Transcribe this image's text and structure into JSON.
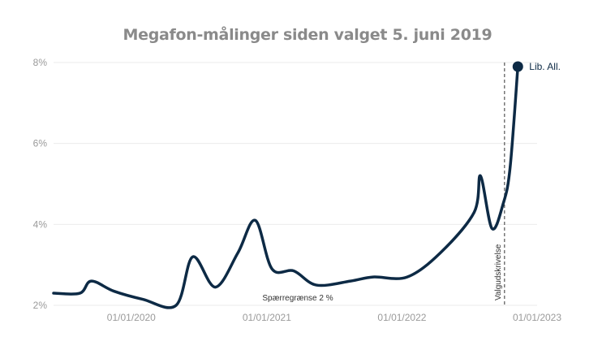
{
  "chart_data": {
    "type": "line",
    "title": "Megafon-målinger siden valget 5. juni 2019",
    "xlabel": "",
    "ylabel": "",
    "x_range": [
      "2019-06-05",
      "2023-01-01"
    ],
    "ylim": [
      2,
      8
    ],
    "y_ticks": [
      {
        "value": 2,
        "label": "2%"
      },
      {
        "value": 4,
        "label": "4%"
      },
      {
        "value": 6,
        "label": "6%"
      },
      {
        "value": 8,
        "label": "8%"
      }
    ],
    "x_ticks": [
      {
        "date": "2020-01-01",
        "label": "01/01/2020"
      },
      {
        "date": "2021-01-01",
        "label": "01/01/2021"
      },
      {
        "date": "2022-01-01",
        "label": "01/01/2022"
      },
      {
        "date": "2023-01-01",
        "label": "01/01/2023"
      }
    ],
    "grid": true,
    "series": [
      {
        "name": "Lib. All.",
        "color": "#0d2a45",
        "points": [
          {
            "date": "2019-06-05",
            "value": 2.3
          },
          {
            "date": "2019-08-15",
            "value": 2.3
          },
          {
            "date": "2019-09-15",
            "value": 2.6
          },
          {
            "date": "2019-11-15",
            "value": 2.35
          },
          {
            "date": "2020-02-01",
            "value": 2.15
          },
          {
            "date": "2020-05-01",
            "value": 2.0
          },
          {
            "date": "2020-06-15",
            "value": 3.2
          },
          {
            "date": "2020-08-15",
            "value": 2.45
          },
          {
            "date": "2020-10-15",
            "value": 3.3
          },
          {
            "date": "2020-12-01",
            "value": 4.1
          },
          {
            "date": "2021-01-15",
            "value": 2.9
          },
          {
            "date": "2021-03-15",
            "value": 2.85
          },
          {
            "date": "2021-05-15",
            "value": 2.5
          },
          {
            "date": "2021-08-15",
            "value": 2.6
          },
          {
            "date": "2021-10-15",
            "value": 2.7
          },
          {
            "date": "2022-01-15",
            "value": 2.7
          },
          {
            "date": "2022-04-15",
            "value": 3.3
          },
          {
            "date": "2022-07-15",
            "value": 4.3
          },
          {
            "date": "2022-08-01",
            "value": 5.2
          },
          {
            "date": "2022-09-01",
            "value": 3.9
          },
          {
            "date": "2022-10-01",
            "value": 4.5
          },
          {
            "date": "2022-10-20",
            "value": 5.4
          },
          {
            "date": "2022-11-10",
            "value": 7.9
          }
        ]
      }
    ],
    "end_label": "Lib. All.",
    "annotations": [
      {
        "type": "hline",
        "value": 2,
        "label": "Spærregrænse 2 %"
      },
      {
        "type": "vline",
        "date": "2022-10-05",
        "label": "Valgudskrivelse"
      }
    ]
  }
}
